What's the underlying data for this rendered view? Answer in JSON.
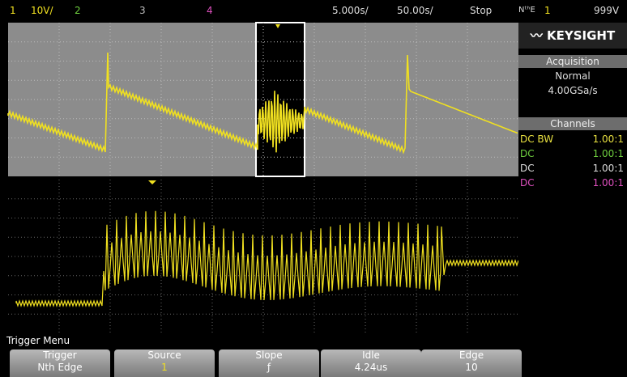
{
  "top_bar": {
    "ch1": "1",
    "ch1_scale": "10V/",
    "ch2": "2",
    "ch3": "3",
    "ch4": "4",
    "timebase": "5.000s/",
    "delay": "50.00s/",
    "run_state": "Stop",
    "trigger_mode": "NᵗʰE",
    "trigger_source": "1",
    "trigger_level": "999V"
  },
  "brand": "KEYSIGHT",
  "acquisition": {
    "title": "Acquisition",
    "mode": "Normal",
    "rate": "4.00GSa/s"
  },
  "channels": {
    "title": "Channels",
    "rows": [
      {
        "coupling": "DC BW",
        "ratio": "1.00:1"
      },
      {
        "coupling": "DC",
        "ratio": "1.00:1"
      },
      {
        "coupling": "DC",
        "ratio": "1.00:1"
      },
      {
        "coupling": "DC",
        "ratio": "1.00:1"
      }
    ]
  },
  "menu": {
    "title": "Trigger Menu",
    "softkeys": [
      {
        "label": "Trigger",
        "value": "Nth Edge"
      },
      {
        "label": "Source",
        "value": "1"
      },
      {
        "label": "Slope",
        "value": "ƒ"
      },
      {
        "label": "Idle",
        "value": "4.24us"
      },
      {
        "label": "Edge",
        "value": "10"
      }
    ]
  }
}
